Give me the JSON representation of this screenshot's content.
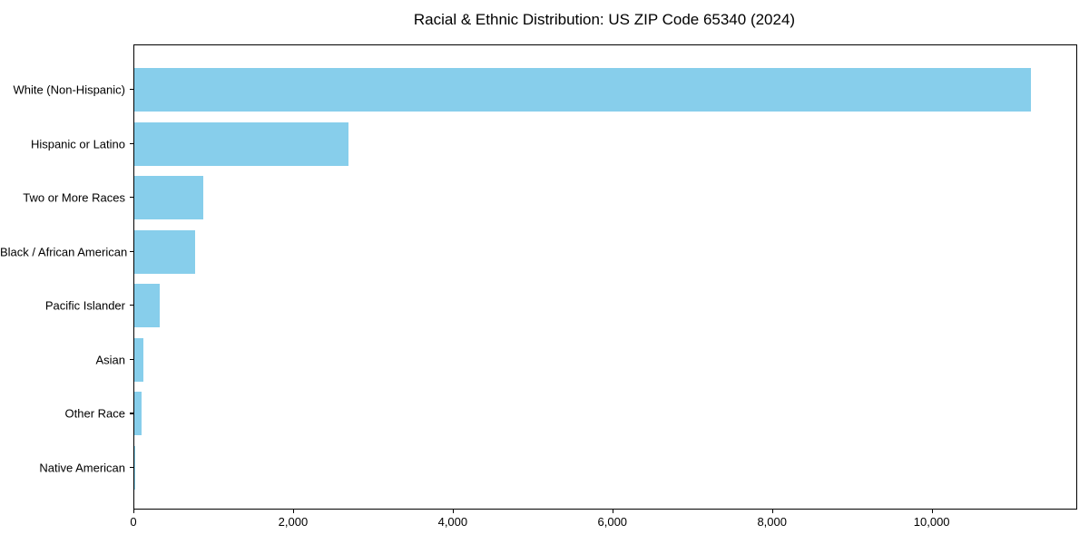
{
  "title": "Racial & Ethnic Distribution: US ZIP Code 65340 (2024)",
  "colors": {
    "bar": "#87CEEB",
    "axis": "#000000",
    "background": "#FFFFFF",
    "text": "#000000"
  },
  "chart_data": {
    "type": "bar",
    "orientation": "horizontal",
    "title": "Racial & Ethnic Distribution: US ZIP Code 65340 (2024)",
    "categories": [
      "White (Non-Hispanic)",
      "Hispanic or Latino",
      "Two or More Races",
      "Black / African American",
      "Pacific Islander",
      "Asian",
      "Other Race",
      "Native American"
    ],
    "values": [
      11230,
      2680,
      860,
      765,
      320,
      110,
      95,
      10
    ],
    "xlabel": "",
    "ylabel": "",
    "xlim": [
      0,
      11800
    ],
    "xticks": [
      0,
      2000,
      4000,
      6000,
      8000,
      10000
    ],
    "xtick_labels": [
      "0",
      "2,000",
      "4,000",
      "6,000",
      "8,000",
      "10,000"
    ],
    "bar_color": "#87CEEB",
    "grid": false,
    "legend": "none"
  }
}
